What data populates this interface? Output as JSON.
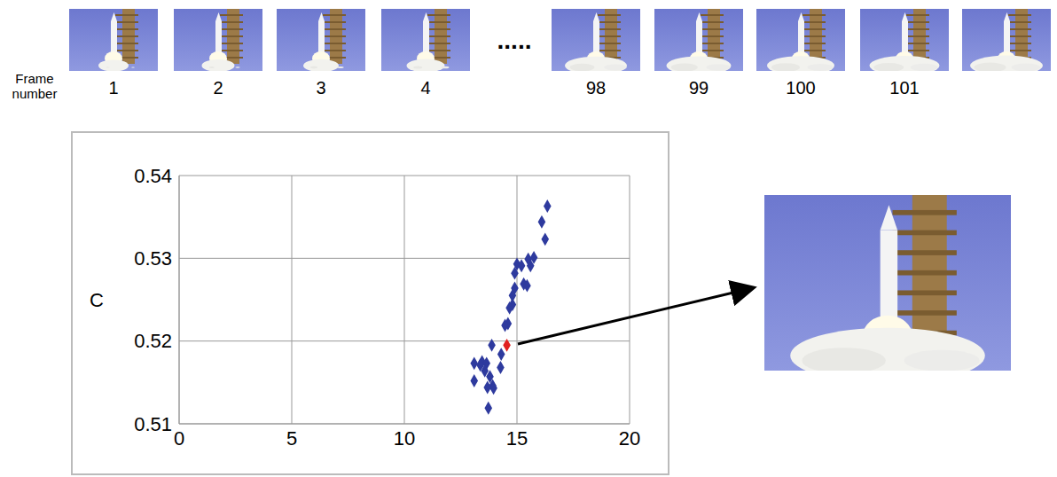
{
  "chart_data": {
    "type": "scatter",
    "x": [
      16.35,
      16.1,
      16.25,
      15.75,
      15.5,
      15.0,
      15.2,
      15.6,
      14.9,
      15.3,
      15.45,
      14.9,
      14.8,
      14.8,
      14.67,
      14.6,
      14.47,
      14.55,
      13.88,
      14.3,
      13.1,
      13.45,
      13.65,
      13.37,
      13.57,
      14.27,
      13.8,
      13.1,
      13.92,
      13.69,
      13.96,
      13.73
    ],
    "values": [
      0.5363,
      0.5344,
      0.5323,
      0.5301,
      0.5299,
      0.5293,
      0.5291,
      0.5291,
      0.5282,
      0.5269,
      0.5267,
      0.5264,
      0.5255,
      0.5244,
      0.524,
      0.5221,
      0.5219,
      0.5195,
      0.5195,
      0.5184,
      0.5173,
      0.5175,
      0.5173,
      0.5171,
      0.5164,
      0.5168,
      0.5157,
      0.5152,
      0.5146,
      0.5144,
      0.5143,
      0.5119
    ],
    "colors": [
      "#2e3a9e",
      "#2e3a9e",
      "#2e3a9e",
      "#2e3a9e",
      "#2e3a9e",
      "#2e3a9e",
      "#2e3a9e",
      "#2e3a9e",
      "#2e3a9e",
      "#2e3a9e",
      "#2e3a9e",
      "#2e3a9e",
      "#2e3a9e",
      "#2e3a9e",
      "#2e3a9e",
      "#2e3a9e",
      "#2e3a9e",
      "#e02020",
      "#2e3a9e",
      "#2e3a9e",
      "#2e3a9e",
      "#2e3a9e",
      "#2e3a9e",
      "#2e3a9e",
      "#2e3a9e",
      "#2e3a9e",
      "#2e3a9e",
      "#2e3a9e",
      "#2e3a9e",
      "#2e3a9e",
      "#2e3a9e",
      "#2e3a9e"
    ],
    "marker": "diamond",
    "y_label": "C",
    "xlim": [
      0,
      20
    ],
    "xticks": [
      0,
      5,
      10,
      15,
      20
    ],
    "ylim": [
      0.51,
      0.54
    ],
    "yticks": [
      0.51,
      0.52,
      0.53,
      0.54
    ],
    "grid": true
  },
  "frames": {
    "label": "Frame number",
    "numbers": [
      1,
      2,
      3,
      4,
      98,
      99,
      100,
      101,
      null
    ],
    "ellipsis": "....."
  }
}
